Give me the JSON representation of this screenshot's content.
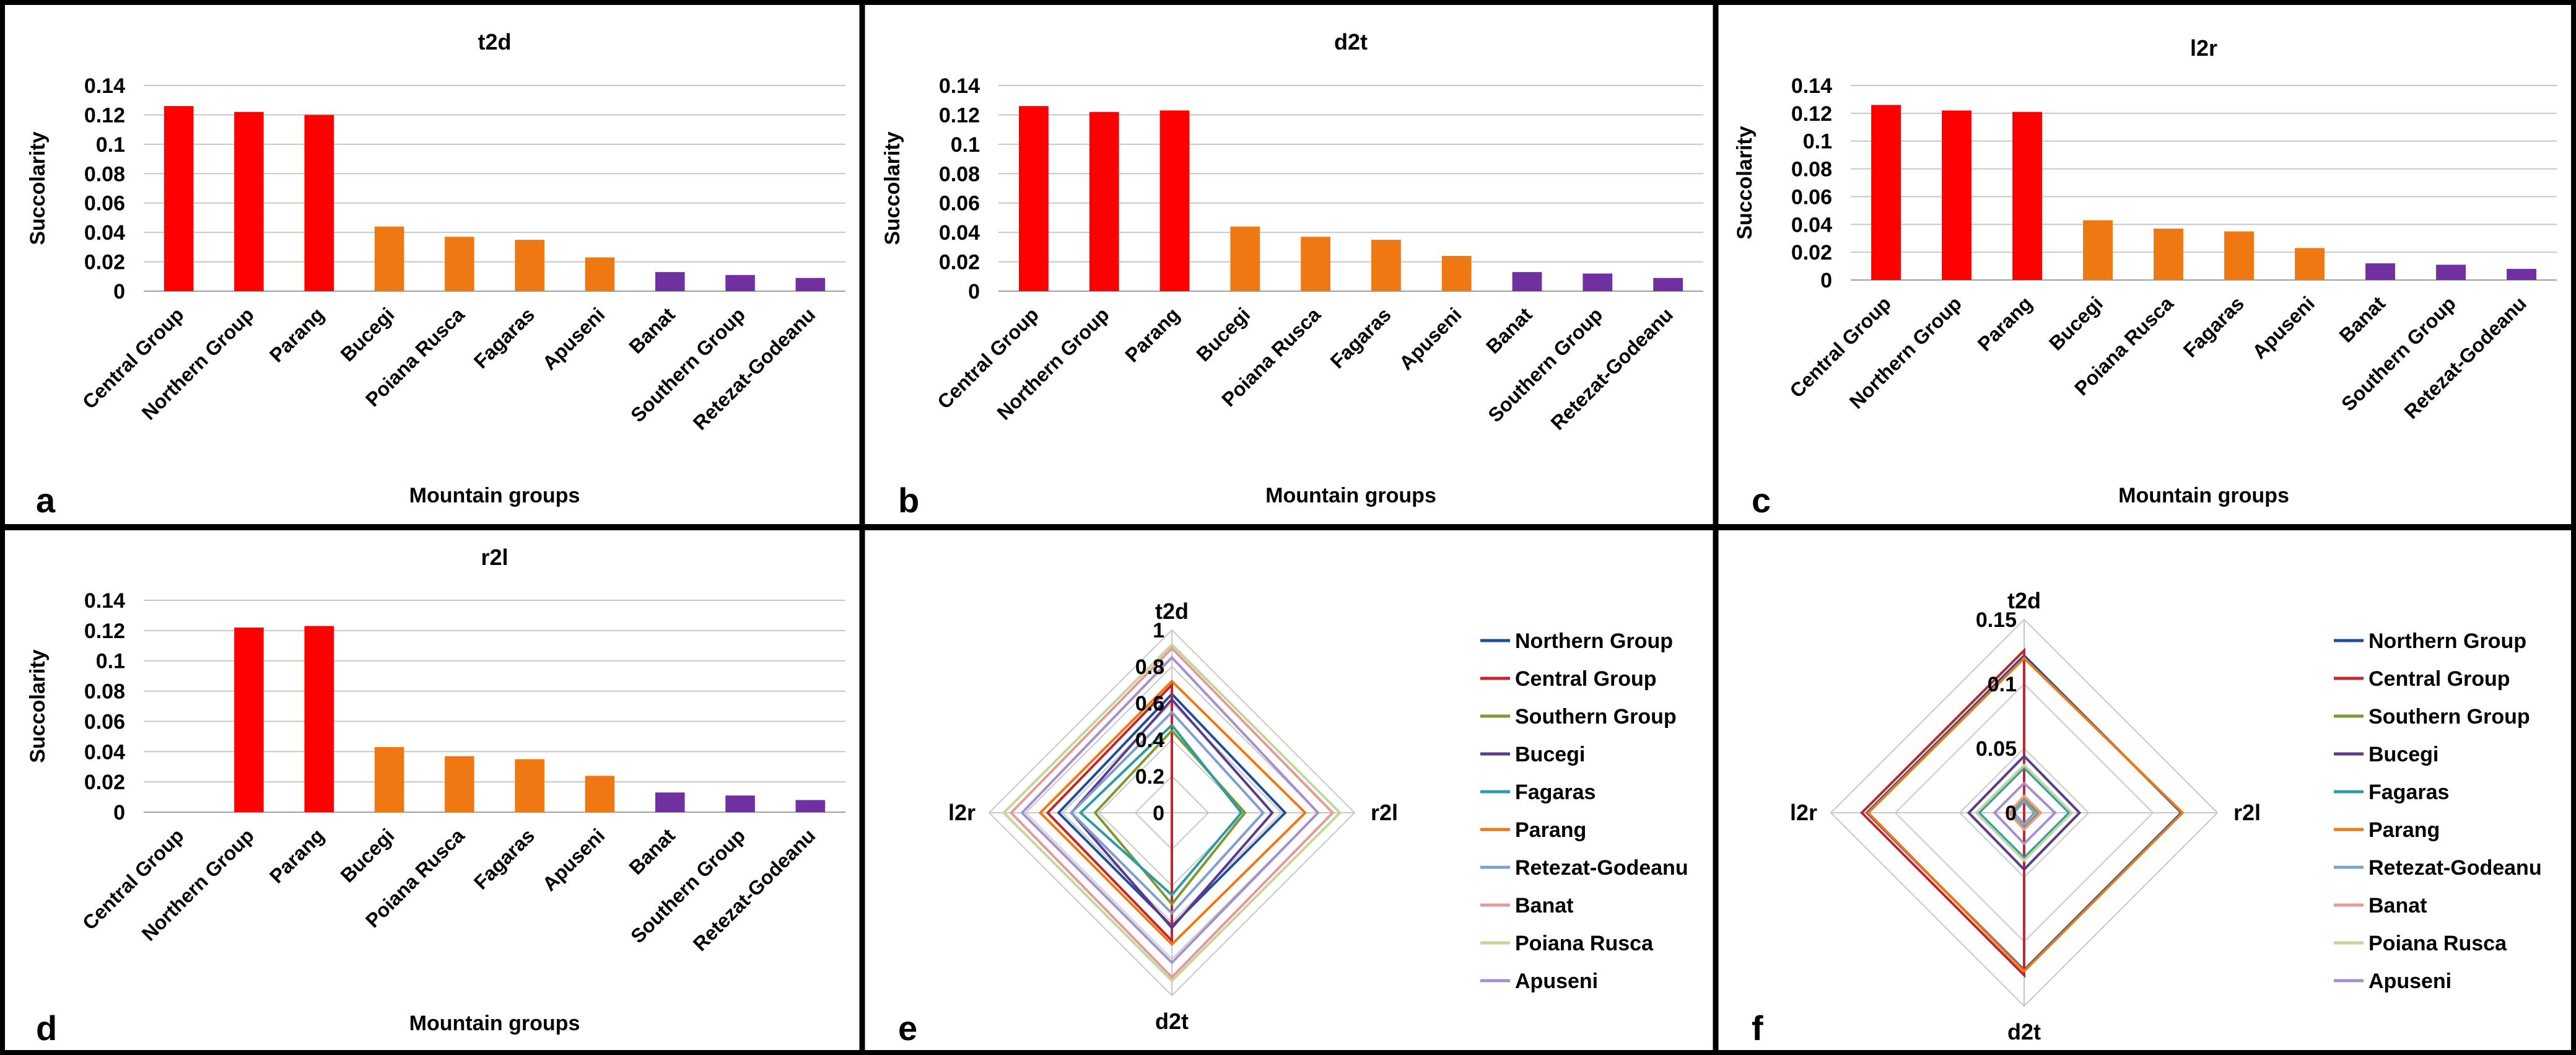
{
  "figure": {
    "panel_letters": [
      "a",
      "b",
      "c",
      "d",
      "e",
      "f"
    ]
  },
  "colors": {
    "high": "#ff0000",
    "mid": "#f07812",
    "low": "#7030a0",
    "grid": "#c8c8c8",
    "border": "#000000"
  },
  "chart_data": [
    {
      "panel": "a",
      "type": "bar",
      "title": "t2d",
      "xlabel": "Mountain groups",
      "ylabel": "Succolarity",
      "ylim": [
        0,
        0.14
      ],
      "yticks": [
        "0",
        "0.02",
        "0.04",
        "0.06",
        "0.08",
        "0.1",
        "0.12",
        "0.14"
      ],
      "categories": [
        "Central Group",
        "Northern Group",
        "Parang",
        "Bucegi",
        "Poiana Rusca",
        "Fagaras",
        "Apuseni",
        "Banat",
        "Southern Group",
        "Retezat-Godeanu"
      ],
      "values": [
        0.126,
        0.122,
        0.12,
        0.044,
        0.037,
        0.035,
        0.023,
        0.013,
        0.011,
        0.009
      ],
      "bar_colors": [
        "#ff0000",
        "#ff0000",
        "#ff0000",
        "#f07812",
        "#f07812",
        "#f07812",
        "#f07812",
        "#7030a0",
        "#7030a0",
        "#7030a0"
      ]
    },
    {
      "panel": "b",
      "type": "bar",
      "title": "d2t",
      "xlabel": "Mountain groups",
      "ylabel": "Succolarity",
      "ylim": [
        0,
        0.14
      ],
      "yticks": [
        "0",
        "0.02",
        "0.04",
        "0.06",
        "0.08",
        "0.1",
        "0.12",
        "0.14"
      ],
      "categories": [
        "Central Group",
        "Northern Group",
        "Parang",
        "Bucegi",
        "Poiana Rusca",
        "Fagaras",
        "Apuseni",
        "Banat",
        "Southern Group",
        "Retezat-Godeanu"
      ],
      "values": [
        0.126,
        0.122,
        0.123,
        0.044,
        0.037,
        0.035,
        0.024,
        0.013,
        0.012,
        0.009
      ],
      "bar_colors": [
        "#ff0000",
        "#ff0000",
        "#ff0000",
        "#f07812",
        "#f07812",
        "#f07812",
        "#f07812",
        "#7030a0",
        "#7030a0",
        "#7030a0"
      ]
    },
    {
      "panel": "c",
      "type": "bar",
      "title": "l2r",
      "xlabel": "Mountain groups",
      "ylabel": "Succolarity",
      "ylim": [
        0,
        0.14
      ],
      "yticks": [
        "0",
        "0.02",
        "0.04",
        "0.06",
        "0.08",
        "0.1",
        "0.12",
        "0.14"
      ],
      "categories": [
        "Central Group",
        "Northern Group",
        "Parang",
        "Bucegi",
        "Poiana Rusca",
        "Fagaras",
        "Apuseni",
        "Banat",
        "Southern Group",
        "Retezat-Godeanu"
      ],
      "values": [
        0.126,
        0.122,
        0.121,
        0.043,
        0.037,
        0.035,
        0.023,
        0.012,
        0.011,
        0.008
      ],
      "bar_colors": [
        "#ff0000",
        "#ff0000",
        "#ff0000",
        "#f07812",
        "#f07812",
        "#f07812",
        "#f07812",
        "#7030a0",
        "#7030a0",
        "#7030a0"
      ]
    },
    {
      "panel": "d",
      "type": "bar",
      "title": "r2l",
      "xlabel": "Mountain groups",
      "ylabel": "Succolarity",
      "ylim": [
        0,
        0.14
      ],
      "yticks": [
        "0",
        "0.02",
        "0.04",
        "0.06",
        "0.08",
        "0.1",
        "0.12",
        "0.14"
      ],
      "categories": [
        "Central Group",
        "Northern Group",
        "Parang",
        "Bucegi",
        "Poiana Rusca",
        "Fagaras",
        "Apuseni",
        "Banat",
        "Southern Group",
        "Retezat-Godeanu"
      ],
      "values": [
        0.0,
        0.122,
        0.123,
        0.043,
        0.037,
        0.035,
        0.024,
        0.013,
        0.011,
        0.008
      ],
      "bar_colors": [
        "#ff0000",
        "#ff0000",
        "#ff0000",
        "#f07812",
        "#f07812",
        "#f07812",
        "#f07812",
        "#7030a0",
        "#7030a0",
        "#7030a0"
      ]
    },
    {
      "panel": "e",
      "type": "radar",
      "axes": [
        "t2d",
        "r2l",
        "d2t",
        "l2r"
      ],
      "rlim": [
        0,
        1
      ],
      "rticks": [
        "0",
        "0.2",
        "0.4",
        "0.6",
        "0.8",
        "1"
      ],
      "series": [
        {
          "name": "Northern Group",
          "color": "#1f4e9c",
          "values": [
            0.65,
            0.62,
            0.62,
            0.62
          ]
        },
        {
          "name": "Central Group",
          "color": "#c0262d",
          "values": [
            0.7,
            0.0,
            0.7,
            0.68
          ]
        },
        {
          "name": "Southern Group",
          "color": "#7a9a33",
          "values": [
            0.45,
            0.4,
            0.5,
            0.42
          ]
        },
        {
          "name": "Bucegi",
          "color": "#5a3a8c",
          "values": [
            0.62,
            0.55,
            0.63,
            0.55
          ]
        },
        {
          "name": "Fagaras",
          "color": "#2e9aa6",
          "values": [
            0.48,
            0.38,
            0.45,
            0.5
          ]
        },
        {
          "name": "Parang",
          "color": "#f07812",
          "values": [
            0.72,
            0.73,
            0.72,
            0.72
          ]
        },
        {
          "name": "Retezat-Godeanu",
          "color": "#7f9fd0",
          "values": [
            0.55,
            0.5,
            0.55,
            0.55
          ]
        },
        {
          "name": "Banat",
          "color": "#e59a98",
          "values": [
            0.9,
            0.88,
            0.9,
            0.88
          ]
        },
        {
          "name": "Poiana Rusca",
          "color": "#c3d69b",
          "values": [
            0.92,
            0.92,
            0.92,
            0.92
          ]
        },
        {
          "name": "Apuseni",
          "color": "#a48fcf",
          "values": [
            0.85,
            0.8,
            0.82,
            0.82
          ]
        }
      ]
    },
    {
      "panel": "f",
      "type": "radar",
      "axes": [
        "t2d",
        "r2l",
        "d2t",
        "l2r"
      ],
      "rlim": [
        0,
        0.15
      ],
      "rticks": [
        "0",
        "0.05",
        "0.1",
        "0.15"
      ],
      "series": [
        {
          "name": "Northern Group",
          "color": "#1f4e9c",
          "values": [
            0.122,
            0.122,
            0.122,
            0.122
          ]
        },
        {
          "name": "Central Group",
          "color": "#c0262d",
          "values": [
            0.126,
            0.0,
            0.126,
            0.126
          ]
        },
        {
          "name": "Southern Group",
          "color": "#7a9a33",
          "values": [
            0.011,
            0.011,
            0.012,
            0.011
          ]
        },
        {
          "name": "Bucegi",
          "color": "#5a3a8c",
          "values": [
            0.044,
            0.043,
            0.044,
            0.043
          ]
        },
        {
          "name": "Fagaras",
          "color": "#2e9aa6",
          "values": [
            0.035,
            0.035,
            0.035,
            0.035
          ]
        },
        {
          "name": "Parang",
          "color": "#f07812",
          "values": [
            0.12,
            0.123,
            0.123,
            0.121
          ]
        },
        {
          "name": "Retezat-Godeanu",
          "color": "#7f9fd0",
          "values": [
            0.009,
            0.008,
            0.009,
            0.008
          ]
        },
        {
          "name": "Banat",
          "color": "#e59a98",
          "values": [
            0.013,
            0.013,
            0.013,
            0.012
          ]
        },
        {
          "name": "Poiana Rusca",
          "color": "#c3d69b",
          "values": [
            0.037,
            0.037,
            0.037,
            0.037
          ]
        },
        {
          "name": "Apuseni",
          "color": "#a48fcf",
          "values": [
            0.023,
            0.024,
            0.024,
            0.023
          ]
        }
      ]
    }
  ]
}
